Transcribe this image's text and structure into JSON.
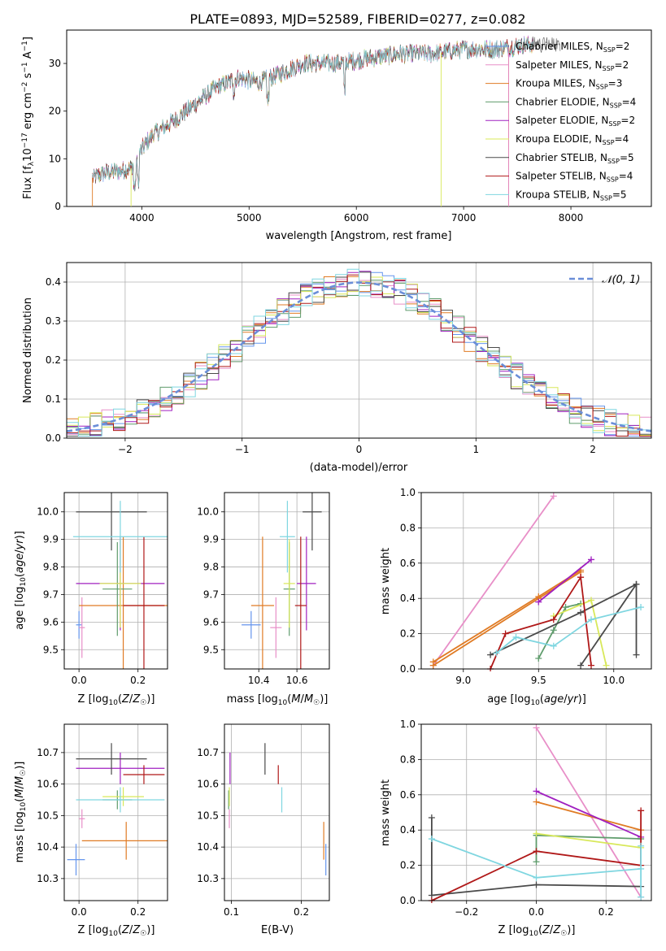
{
  "figure_title": "PLATE=0893, MJD=52589, FIBERID=0277, z=0.082",
  "models": [
    {
      "name": "Chabrier MILES",
      "nssp": "2",
      "color": "#6495ed"
    },
    {
      "name": "Salpeter MILES",
      "nssp": "2",
      "color": "#e88fc8"
    },
    {
      "name": "Kroupa MILES",
      "nssp": "3",
      "color": "#e07b24"
    },
    {
      "name": "Chabrier ELODIE",
      "nssp": "4",
      "color": "#5f9c6c"
    },
    {
      "name": "Salpeter ELODIE",
      "nssp": "2",
      "color": "#a020c0"
    },
    {
      "name": "Kroupa ELODIE",
      "nssp": "4",
      "color": "#d8e85a"
    },
    {
      "name": "Chabrier STELIB",
      "nssp": "5",
      "color": "#4a4a4a"
    },
    {
      "name": "Salpeter STELIB",
      "nssp": "4",
      "color": "#b01818"
    },
    {
      "name": "Kroupa STELIB",
      "nssp": "5",
      "color": "#7fd6e0"
    }
  ],
  "chart_data": [
    {
      "id": "spectrum",
      "type": "line",
      "xlabel": "wavelength [Angstrom, rest frame]",
      "ylabel": "Flux [fλ10⁻¹⁷ erg cm⁻² s⁻¹ A⁻¹]",
      "xlim": [
        3300,
        8750
      ],
      "ylim": [
        0,
        37
      ],
      "xticks": [
        4000,
        5000,
        6000,
        7000,
        8000
      ],
      "yticks": [
        0,
        10,
        20,
        30
      ],
      "continuum": {
        "x": [
          3540,
          3650,
          3800,
          3900,
          4000,
          4100,
          4300,
          4500,
          4700,
          4900,
          5100,
          5300,
          5500,
          5800,
          6100,
          6400,
          6700,
          7000,
          7300,
          7600,
          7900
        ],
        "y": [
          6,
          7,
          7.5,
          8,
          12,
          15,
          18,
          21.5,
          25,
          27,
          26,
          28,
          30,
          30,
          31,
          32,
          32,
          33,
          33,
          34,
          34
        ]
      },
      "legend_placement": "right"
    },
    {
      "id": "residuals",
      "type": "histogram",
      "xlabel": "(data-model)/error",
      "ylabel": "Normed distribution",
      "xlim": [
        -2.5,
        2.5
      ],
      "ylim": [
        0,
        0.45
      ],
      "xticks": [
        -2,
        -1,
        0,
        1,
        2
      ],
      "yticks": [
        0.0,
        0.1,
        0.2,
        0.3,
        0.4
      ],
      "grid": true,
      "reference_curve": "N(0,1)",
      "legend_placement": "top-right"
    },
    {
      "id": "age-vs-Z",
      "type": "errorbar",
      "xlabel": "Z [log10(Z/Z☉)]",
      "ylabel": "age  [log10(age/yr)]",
      "xlim": [
        -0.05,
        0.3
      ],
      "ylim": [
        9.43,
        10.07
      ],
      "xticks": [
        0.0,
        0.2
      ],
      "yticks": [
        9.5,
        9.6,
        9.7,
        9.8,
        9.9,
        10.0
      ],
      "points": [
        {
          "x": 0.0,
          "xerr": 0.01,
          "y": 9.59,
          "yerr": 0.05
        },
        {
          "x": 0.01,
          "xerr": 0.01,
          "y": 9.58,
          "yerr": 0.11
        },
        {
          "x": 0.15,
          "xerr": 0.15,
          "y": 9.66,
          "yerr": 0.25
        },
        {
          "x": 0.13,
          "xerr": 0.05,
          "y": 9.72,
          "yerr": 0.17
        },
        {
          "x": 0.14,
          "xerr": 0.15,
          "y": 9.74,
          "yerr": 0.17
        },
        {
          "x": 0.14,
          "xerr": 0.07,
          "y": 9.74,
          "yerr": 0.16
        },
        {
          "x": 0.11,
          "xerr": 0.12,
          "y": 10.0,
          "yerr": 0.14
        },
        {
          "x": 0.22,
          "xerr": 0.07,
          "y": 9.66,
          "yerr": 0.25
        },
        {
          "x": 0.14,
          "xerr": 0.16,
          "y": 9.91,
          "yerr": 0.13
        }
      ]
    },
    {
      "id": "age-vs-mass",
      "type": "errorbar",
      "xlabel": "mass [log10(M/M☉)]",
      "ylabel": "",
      "xlim": [
        10.22,
        10.77
      ],
      "ylim": [
        9.43,
        10.07
      ],
      "xticks": [
        10.4,
        10.6
      ],
      "yticks": [
        9.5,
        9.6,
        9.7,
        9.8,
        9.9,
        10.0
      ],
      "points": [
        {
          "x": 10.36,
          "xerr": 0.05,
          "y": 9.59,
          "yerr": 0.05
        },
        {
          "x": 10.49,
          "xerr": 0.03,
          "y": 9.58,
          "yerr": 0.11
        },
        {
          "x": 10.42,
          "xerr": 0.06,
          "y": 9.66,
          "yerr": 0.25
        },
        {
          "x": 10.56,
          "xerr": 0.03,
          "y": 9.72,
          "yerr": 0.17
        },
        {
          "x": 10.65,
          "xerr": 0.05,
          "y": 9.74,
          "yerr": 0.17
        },
        {
          "x": 10.56,
          "xerr": 0.03,
          "y": 9.74,
          "yerr": 0.16
        },
        {
          "x": 10.68,
          "xerr": 0.05,
          "y": 10.0,
          "yerr": 0.14
        },
        {
          "x": 10.62,
          "xerr": 0.03,
          "y": 9.66,
          "yerr": 0.25
        },
        {
          "x": 10.55,
          "xerr": 0.04,
          "y": 9.91,
          "yerr": 0.13
        }
      ]
    },
    {
      "id": "weight-vs-age",
      "type": "line",
      "xlabel": "age  [log10(age/yr)]",
      "ylabel": "mass weight",
      "xlim": [
        8.72,
        10.25
      ],
      "ylim": [
        0,
        1
      ],
      "xticks": [
        9.0,
        9.5,
        10.0
      ],
      "yticks": [
        0.0,
        0.2,
        0.4,
        0.6,
        0.8,
        1.0
      ],
      "series": [
        {
          "x": [
            8.8,
            9.6
          ],
          "y": [
            0.02,
            0.98
          ]
        },
        {
          "x": [
            8.8,
            9.5,
            9.78
          ],
          "y": [
            0.02,
            0.4,
            0.55
          ]
        },
        {
          "x": [
            8.8,
            9.5,
            9.78
          ],
          "y": [
            0.04,
            0.41,
            0.56
          ]
        },
        {
          "x": [
            9.5,
            9.6,
            9.68,
            9.78
          ],
          "y": [
            0.06,
            0.22,
            0.35,
            0.37
          ]
        },
        {
          "x": [
            9.5,
            9.85
          ],
          "y": [
            0.38,
            0.62
          ]
        },
        {
          "x": [
            9.6,
            9.85,
            9.95
          ],
          "y": [
            0.3,
            0.39,
            0.02
          ]
        },
        {
          "x": [
            9.18,
            9.78,
            10.15
          ],
          "y": [
            0.08,
            0.32,
            0.48
          ]
        },
        {
          "x": [
            9.78,
            10.15
          ],
          "y": [
            0.02,
            0.48
          ]
        },
        {
          "x": [
            10.15,
            10.15
          ],
          "y": [
            0.48,
            0.08
          ]
        },
        {
          "x": [
            9.18,
            9.28,
            9.6,
            9.78
          ],
          "y": [
            0.0,
            0.2,
            0.28,
            0.52
          ]
        },
        {
          "x": [
            9.78,
            9.85
          ],
          "y": [
            0.52,
            0.02
          ]
        },
        {
          "x": [
            9.22,
            9.35,
            9.6,
            9.85,
            10.18
          ],
          "y": [
            0.09,
            0.18,
            0.13,
            0.28,
            0.35
          ]
        }
      ]
    },
    {
      "id": "mass-vs-Z",
      "type": "errorbar",
      "xlabel": "Z [log10(Z/Z☉)]",
      "ylabel": "mass [log10(M/M☉)]",
      "xlim": [
        -0.05,
        0.3
      ],
      "ylim": [
        10.23,
        10.79
      ],
      "xticks": [
        0.0,
        0.2
      ],
      "yticks": [
        10.3,
        10.4,
        10.5,
        10.6,
        10.7
      ],
      "points": [
        {
          "x": -0.01,
          "xerr": 0.03,
          "y": 10.36,
          "yerr": 0.05
        },
        {
          "x": 0.01,
          "xerr": 0.01,
          "y": 10.49,
          "yerr": 0.03
        },
        {
          "x": 0.16,
          "xerr": 0.15,
          "y": 10.42,
          "yerr": 0.06
        },
        {
          "x": 0.13,
          "xerr": 0.05,
          "y": 10.55,
          "yerr": 0.03
        },
        {
          "x": 0.14,
          "xerr": 0.15,
          "y": 10.65,
          "yerr": 0.05
        },
        {
          "x": 0.15,
          "xerr": 0.07,
          "y": 10.56,
          "yerr": 0.03
        },
        {
          "x": 0.11,
          "xerr": 0.12,
          "y": 10.68,
          "yerr": 0.05
        },
        {
          "x": 0.22,
          "xerr": 0.07,
          "y": 10.63,
          "yerr": 0.03
        },
        {
          "x": 0.14,
          "xerr": 0.15,
          "y": 10.55,
          "yerr": 0.04
        }
      ]
    },
    {
      "id": "mass-vs-EBV",
      "type": "errorbar",
      "xlabel": "E(B-V)",
      "ylabel": "",
      "xlim": [
        0.09,
        0.24
      ],
      "ylim": [
        10.23,
        10.79
      ],
      "xticks": [
        0.1,
        0.2
      ],
      "yticks": [
        10.3,
        10.4,
        10.5,
        10.6,
        10.7
      ],
      "points": [
        {
          "x": 0.235,
          "yerr": 0.05,
          "y": 10.36
        },
        {
          "x": 0.097,
          "yerr": 0.03,
          "y": 10.49
        },
        {
          "x": 0.232,
          "yerr": 0.06,
          "y": 10.42
        },
        {
          "x": 0.096,
          "yerr": 0.03,
          "y": 10.55
        },
        {
          "x": 0.098,
          "yerr": 0.05,
          "y": 10.65
        },
        {
          "x": 0.097,
          "yerr": 0.03,
          "y": 10.56
        },
        {
          "x": 0.148,
          "yerr": 0.05,
          "y": 10.68
        },
        {
          "x": 0.167,
          "yerr": 0.03,
          "y": 10.63
        },
        {
          "x": 0.172,
          "yerr": 0.04,
          "y": 10.55
        }
      ]
    },
    {
      "id": "weight-vs-Z",
      "type": "line",
      "xlabel": "Z [log10(Z/Z☉)]",
      "ylabel": "mass weight",
      "xlim": [
        -0.33,
        0.33
      ],
      "ylim": [
        0,
        1
      ],
      "xticks": [
        -0.2,
        0.0,
        0.2
      ],
      "yticks": [
        0.0,
        0.2,
        0.4,
        0.6,
        0.8,
        1.0
      ],
      "series": [
        {
          "x": [
            0.0,
            0.3
          ],
          "y": [
            0.98,
            0.02
          ]
        },
        {
          "x": [
            0.0,
            0.3
          ],
          "y": [
            0.56,
            0.4
          ]
        },
        {
          "x": [
            0.0,
            0.3
          ],
          "y": [
            0.62,
            0.36
          ]
        },
        {
          "x": [
            0.0,
            0.0,
            0.3
          ],
          "y": [
            0.22,
            0.37,
            0.35
          ]
        },
        {
          "x": [
            0.0,
            0.3
          ],
          "y": [
            0.38,
            0.3
          ]
        },
        {
          "x": [
            -0.3,
            -0.3,
            0.0,
            0.3
          ],
          "y": [
            0.47,
            0.03,
            0.09,
            0.08
          ]
        },
        {
          "x": [
            -0.3,
            0.0,
            0.3,
            0.3
          ],
          "y": [
            0.0,
            0.28,
            0.2,
            0.51
          ]
        },
        {
          "x": [
            -0.3,
            0.0,
            0.3
          ],
          "y": [
            0.35,
            0.13,
            0.18
          ]
        },
        {
          "x": [
            0.3,
            0.3
          ],
          "y": [
            0.02,
            0.31
          ]
        }
      ]
    }
  ]
}
